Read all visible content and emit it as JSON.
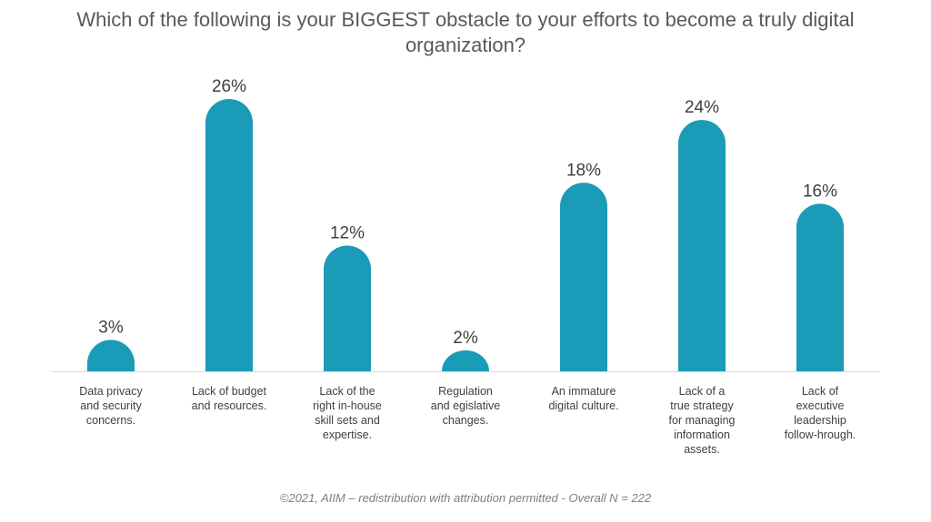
{
  "title": "Which of the following is your BIGGEST obstacle to your efforts to become a truly digital organization?",
  "footer": "©2021, AIIM – redistribution with attribution permitted - Overall N = 222",
  "colors": {
    "bar": "#1a9bb8",
    "axis": "#d9d9d9",
    "text": "#404040"
  },
  "chart_data": {
    "type": "bar",
    "title": "Which of the following is your BIGGEST obstacle to your efforts to become a truly digital organization?",
    "categories": [
      [
        "Data privacy",
        "and security",
        "concerns."
      ],
      [
        "Lack of budget",
        "and resources."
      ],
      [
        "Lack of the",
        "right in-house",
        "skill sets and",
        "expertise."
      ],
      [
        "Regulation",
        "and egislative",
        "changes."
      ],
      [
        "An immature",
        "digital culture."
      ],
      [
        "Lack of a",
        "true strategy",
        "for  managing",
        "information",
        "assets."
      ],
      [
        "Lack of",
        "executive",
        "leadership",
        "follow-hrough."
      ]
    ],
    "values": [
      3,
      26,
      12,
      2,
      18,
      24,
      16
    ],
    "value_labels": [
      "3%",
      "26%",
      "12%",
      "2%",
      "18%",
      "24%",
      "16%"
    ],
    "unit": "%",
    "ylim": [
      0,
      26
    ],
    "grid": false,
    "legend": "none"
  }
}
